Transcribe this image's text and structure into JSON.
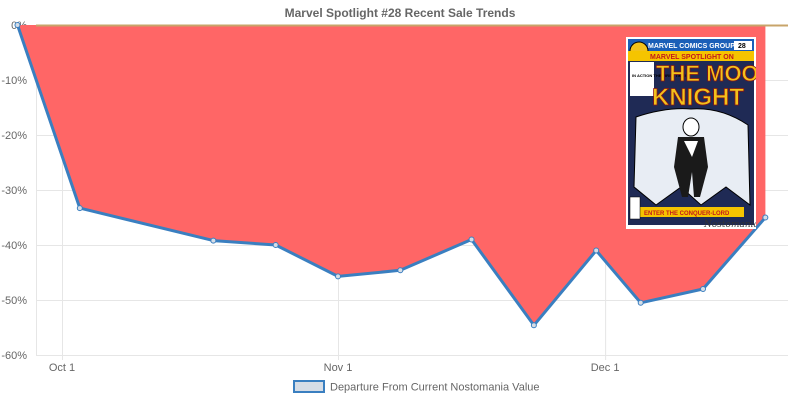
{
  "chart_data": {
    "type": "area",
    "title": "Marvel Spotlight #28 Recent Sale Trends",
    "xlabel": "",
    "ylabel": "",
    "ylim": [
      -60,
      0
    ],
    "y_ticks": [
      "0%",
      "-10%",
      "-20%",
      "-30%",
      "-40%",
      "-50%",
      "-60%"
    ],
    "x_ticks": [
      "Oct 1",
      "Nov 1",
      "Dec 1"
    ],
    "grid": true,
    "legend_position": "bottom",
    "series": [
      {
        "name": "Departure From Current Nostomania Value",
        "fill_color": "#ff6666",
        "line_color": "#3a7fc0",
        "points": [
          {
            "date": "2017-09-26",
            "value": 0
          },
          {
            "date": "2017-10-03",
            "value": -33.3
          },
          {
            "date": "2017-10-18",
            "value": -39.2
          },
          {
            "date": "2017-10-25",
            "value": -40.0
          },
          {
            "date": "2017-11-01",
            "value": -45.7
          },
          {
            "date": "2017-11-08",
            "value": -44.6
          },
          {
            "date": "2017-11-16",
            "value": -39.0
          },
          {
            "date": "2017-11-23",
            "value": -54.6
          },
          {
            "date": "2017-11-30",
            "value": -41.0
          },
          {
            "date": "2017-12-05",
            "value": -50.5
          },
          {
            "date": "2017-12-12",
            "value": -48.0
          },
          {
            "date": "2017-12-19",
            "value": -35.0
          }
        ]
      }
    ]
  },
  "cover": {
    "publisher_banner": "MARVEL COMICS GROUP",
    "series_name": "MARVEL SPOTLIGHT ON",
    "headline_top": "THE MOON",
    "headline_bottom": "KNIGHT",
    "issue_number": "28",
    "blurb": "IN ACTION THE FIRST TIME!",
    "caption": "ENTER THE CONQUER-LORD",
    "watermark": "Nostomania",
    "colors": {
      "banner": "#1b5fb8",
      "headline": "#f2c21b",
      "caption_bg": "#f5c400",
      "art_bg": "#1f2a55"
    }
  }
}
